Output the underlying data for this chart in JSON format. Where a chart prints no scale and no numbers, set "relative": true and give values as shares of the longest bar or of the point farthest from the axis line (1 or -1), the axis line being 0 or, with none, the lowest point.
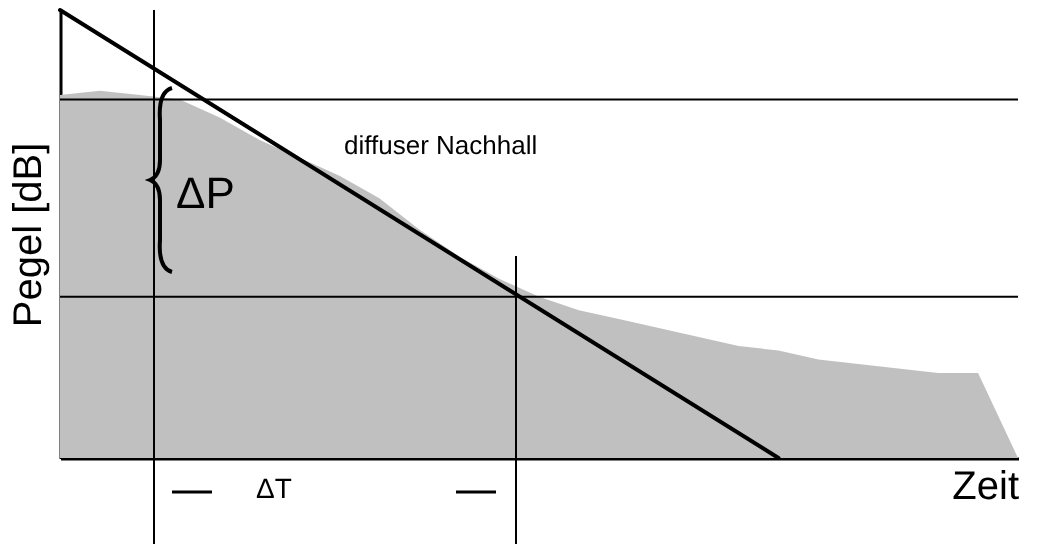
{
  "chart_data": {
    "type": "area",
    "relative": true,
    "xlabel": "Zeit",
    "ylabel": "Pegel [dB]",
    "grid": false,
    "categories": [
      null,
      null,
      null,
      null,
      null,
      null,
      null,
      null,
      null,
      null,
      null,
      null,
      null,
      null,
      null,
      null,
      null,
      null,
      null,
      null,
      null,
      null,
      null,
      null,
      null
    ],
    "annotations": [
      "diffuser Nachhall",
      "ΔP",
      "ΔT"
    ],
    "series": [
      {
        "color": "#c0c0c0",
        "values": [
          0.81,
          0.82,
          0.81,
          0.8,
          0.76,
          0.71,
          0.67,
          0.63,
          0.58,
          0.51,
          0.45,
          0.4,
          0.36,
          0.33,
          0.31,
          0.29,
          0.27,
          0.25,
          0.24,
          0.22,
          0.21,
          0.2,
          0.19,
          0.19,
          0
        ]
      },
      {
        "type": "line",
        "color": "#000000",
        "values": [
          1,
          null,
          null,
          null,
          null,
          null,
          null,
          null,
          null,
          null,
          null,
          null,
          null,
          null,
          null,
          null,
          null,
          null,
          0,
          null,
          null,
          null,
          null,
          null,
          null
        ]
      }
    ],
    "ref_lines": [
      {
        "axis": "y",
        "value": 0.8,
        "color": "#000000"
      },
      {
        "axis": "y",
        "value": 0.36,
        "color": "#000000"
      }
    ]
  }
}
